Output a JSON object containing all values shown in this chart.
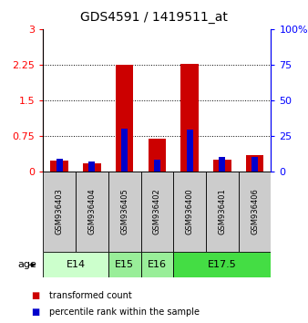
{
  "title": "GDS4591 / 1419511_at",
  "samples": [
    "GSM936403",
    "GSM936404",
    "GSM936405",
    "GSM936402",
    "GSM936400",
    "GSM936401",
    "GSM936406"
  ],
  "transformed_counts": [
    0.22,
    0.16,
    2.25,
    0.68,
    2.27,
    0.24,
    0.33
  ],
  "percentile_ranks_pct": [
    9,
    7,
    30,
    8,
    29,
    10,
    10
  ],
  "age_groups": [
    {
      "label": "E14",
      "start": 0,
      "end": 2,
      "color": "#ccffcc"
    },
    {
      "label": "E15",
      "start": 2,
      "end": 3,
      "color": "#99ee99"
    },
    {
      "label": "E16",
      "start": 3,
      "end": 4,
      "color": "#99ee99"
    },
    {
      "label": "E17.5",
      "start": 4,
      "end": 7,
      "color": "#44dd44"
    }
  ],
  "ylim_left": [
    0,
    3
  ],
  "ylim_right": [
    0,
    100
  ],
  "yticks_left": [
    0,
    0.75,
    1.5,
    2.25,
    3
  ],
  "yticks_right": [
    0,
    25,
    50,
    75,
    100
  ],
  "bar_color_red": "#cc0000",
  "bar_color_blue": "#0000cc",
  "bar_width": 0.55,
  "blue_bar_width": 0.2,
  "background_color": "#ffffff",
  "sample_box_color": "#cccccc",
  "title_fontsize": 10,
  "tick_fontsize": 8,
  "sample_fontsize": 6,
  "age_fontsize": 8,
  "legend_fontsize": 7
}
